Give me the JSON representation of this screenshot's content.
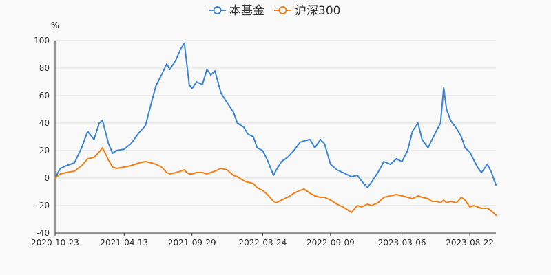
{
  "chart_data": {
    "type": "line",
    "title": "",
    "xlabel": "",
    "ylabel": "%",
    "ylim": [
      -40,
      100
    ],
    "yticks": [
      -40,
      -20,
      0,
      20,
      40,
      60,
      80,
      100
    ],
    "xlim": [
      "2020-10-23",
      "2023-10-26"
    ],
    "xticks": [
      "2020-10-23",
      "2021-04-13",
      "2021-09-29",
      "2022-03-24",
      "2022-09-09",
      "2023-03-06",
      "2023-08-22"
    ],
    "legend": "top-center",
    "series": [
      {
        "name": "本基金",
        "color": "#3a84da",
        "points": [
          [
            "2020-10-23",
            0
          ],
          [
            "2020-11-05",
            7
          ],
          [
            "2020-11-20",
            9
          ],
          [
            "2020-12-10",
            11
          ],
          [
            "2020-12-28",
            22
          ],
          [
            "2021-01-12",
            34
          ],
          [
            "2021-01-28",
            28
          ],
          [
            "2021-02-10",
            40
          ],
          [
            "2021-02-18",
            42
          ],
          [
            "2021-03-05",
            25
          ],
          [
            "2021-03-15",
            18
          ],
          [
            "2021-03-25",
            20
          ],
          [
            "2021-04-13",
            21
          ],
          [
            "2021-04-30",
            25
          ],
          [
            "2021-05-20",
            33
          ],
          [
            "2021-06-05",
            38
          ],
          [
            "2021-06-20",
            55
          ],
          [
            "2021-07-01",
            67
          ],
          [
            "2021-07-15",
            75
          ],
          [
            "2021-07-28",
            83
          ],
          [
            "2021-08-05",
            79
          ],
          [
            "2021-08-20",
            86
          ],
          [
            "2021-09-01",
            94
          ],
          [
            "2021-09-10",
            98
          ],
          [
            "2021-09-16",
            83
          ],
          [
            "2021-09-22",
            68
          ],
          [
            "2021-09-29",
            65
          ],
          [
            "2021-10-10",
            70
          ],
          [
            "2021-10-25",
            68
          ],
          [
            "2021-11-05",
            79
          ],
          [
            "2021-11-15",
            75
          ],
          [
            "2021-11-25",
            78
          ],
          [
            "2021-12-10",
            62
          ],
          [
            "2021-12-25",
            55
          ],
          [
            "2022-01-10",
            48
          ],
          [
            "2022-01-20",
            40
          ],
          [
            "2022-02-05",
            37
          ],
          [
            "2022-02-15",
            32
          ],
          [
            "2022-03-01",
            30
          ],
          [
            "2022-03-10",
            22
          ],
          [
            "2022-03-24",
            20
          ],
          [
            "2022-04-05",
            13
          ],
          [
            "2022-04-20",
            2
          ],
          [
            "2022-04-27",
            6
          ],
          [
            "2022-05-10",
            12
          ],
          [
            "2022-05-25",
            15
          ],
          [
            "2022-06-10",
            20
          ],
          [
            "2022-06-25",
            26
          ],
          [
            "2022-07-05",
            27
          ],
          [
            "2022-07-20",
            28
          ],
          [
            "2022-08-01",
            22
          ],
          [
            "2022-08-15",
            28
          ],
          [
            "2022-08-25",
            25
          ],
          [
            "2022-09-09",
            10
          ],
          [
            "2022-09-25",
            6
          ],
          [
            "2022-10-10",
            4
          ],
          [
            "2022-10-31",
            1
          ],
          [
            "2022-11-15",
            2
          ],
          [
            "2022-11-25",
            -2
          ],
          [
            "2022-12-10",
            -7
          ],
          [
            "2022-12-20",
            -3
          ],
          [
            "2023-01-05",
            4
          ],
          [
            "2023-01-20",
            12
          ],
          [
            "2023-02-05",
            10
          ],
          [
            "2023-02-20",
            14
          ],
          [
            "2023-03-06",
            12
          ],
          [
            "2023-03-20",
            20
          ],
          [
            "2023-04-01",
            34
          ],
          [
            "2023-04-15",
            40
          ],
          [
            "2023-04-25",
            28
          ],
          [
            "2023-05-10",
            22
          ],
          [
            "2023-05-20",
            28
          ],
          [
            "2023-06-01",
            35
          ],
          [
            "2023-06-10",
            40
          ],
          [
            "2023-06-18",
            66
          ],
          [
            "2023-06-25",
            50
          ],
          [
            "2023-07-05",
            42
          ],
          [
            "2023-07-20",
            36
          ],
          [
            "2023-08-01",
            30
          ],
          [
            "2023-08-10",
            22
          ],
          [
            "2023-08-22",
            19
          ],
          [
            "2023-09-01",
            13
          ],
          [
            "2023-09-10",
            8
          ],
          [
            "2023-09-20",
            4
          ],
          [
            "2023-10-05",
            10
          ],
          [
            "2023-10-15",
            4
          ],
          [
            "2023-10-26",
            -5
          ]
        ]
      },
      {
        "name": "沪深300",
        "color": "#f57f17",
        "points": [
          [
            "2020-10-23",
            0
          ],
          [
            "2020-11-05",
            3
          ],
          [
            "2020-11-20",
            4
          ],
          [
            "2020-12-10",
            5
          ],
          [
            "2020-12-28",
            9
          ],
          [
            "2021-01-12",
            14
          ],
          [
            "2021-01-28",
            15
          ],
          [
            "2021-02-10",
            19
          ],
          [
            "2021-02-18",
            22
          ],
          [
            "2021-03-05",
            13
          ],
          [
            "2021-03-15",
            8
          ],
          [
            "2021-03-25",
            7
          ],
          [
            "2021-04-13",
            8
          ],
          [
            "2021-04-30",
            9
          ],
          [
            "2021-05-20",
            11
          ],
          [
            "2021-06-05",
            12
          ],
          [
            "2021-06-20",
            11
          ],
          [
            "2021-07-01",
            10
          ],
          [
            "2021-07-15",
            8
          ],
          [
            "2021-07-28",
            4
          ],
          [
            "2021-08-05",
            3
          ],
          [
            "2021-08-20",
            4
          ],
          [
            "2021-09-01",
            5
          ],
          [
            "2021-09-10",
            6
          ],
          [
            "2021-09-16",
            4
          ],
          [
            "2021-09-22",
            3
          ],
          [
            "2021-09-29",
            3
          ],
          [
            "2021-10-10",
            4
          ],
          [
            "2021-10-25",
            4
          ],
          [
            "2021-11-05",
            3
          ],
          [
            "2021-11-15",
            4
          ],
          [
            "2021-11-25",
            5
          ],
          [
            "2021-12-10",
            7
          ],
          [
            "2021-12-25",
            6
          ],
          [
            "2022-01-10",
            2
          ],
          [
            "2022-01-20",
            1
          ],
          [
            "2022-02-05",
            -2
          ],
          [
            "2022-02-15",
            -3
          ],
          [
            "2022-03-01",
            -4
          ],
          [
            "2022-03-10",
            -7
          ],
          [
            "2022-03-24",
            -9
          ],
          [
            "2022-04-05",
            -12
          ],
          [
            "2022-04-20",
            -17
          ],
          [
            "2022-04-27",
            -18
          ],
          [
            "2022-05-10",
            -16
          ],
          [
            "2022-05-25",
            -14
          ],
          [
            "2022-06-10",
            -11
          ],
          [
            "2022-06-25",
            -9
          ],
          [
            "2022-07-05",
            -8
          ],
          [
            "2022-07-20",
            -11
          ],
          [
            "2022-08-01",
            -13
          ],
          [
            "2022-08-15",
            -14
          ],
          [
            "2022-08-25",
            -14
          ],
          [
            "2022-09-09",
            -16
          ],
          [
            "2022-09-25",
            -19
          ],
          [
            "2022-10-10",
            -21
          ],
          [
            "2022-10-31",
            -25
          ],
          [
            "2022-11-15",
            -20
          ],
          [
            "2022-11-25",
            -21
          ],
          [
            "2022-12-10",
            -19
          ],
          [
            "2022-12-20",
            -20
          ],
          [
            "2023-01-05",
            -18
          ],
          [
            "2023-01-20",
            -14
          ],
          [
            "2023-02-05",
            -13
          ],
          [
            "2023-02-20",
            -12
          ],
          [
            "2023-03-06",
            -13
          ],
          [
            "2023-03-20",
            -14
          ],
          [
            "2023-04-01",
            -15
          ],
          [
            "2023-04-15",
            -13
          ],
          [
            "2023-04-25",
            -14
          ],
          [
            "2023-05-10",
            -15
          ],
          [
            "2023-05-20",
            -17
          ],
          [
            "2023-06-01",
            -17
          ],
          [
            "2023-06-10",
            -18
          ],
          [
            "2023-06-18",
            -16
          ],
          [
            "2023-06-25",
            -18
          ],
          [
            "2023-07-05",
            -17
          ],
          [
            "2023-07-20",
            -18
          ],
          [
            "2023-08-01",
            -14
          ],
          [
            "2023-08-10",
            -16
          ],
          [
            "2023-08-22",
            -21
          ],
          [
            "2023-09-01",
            -20
          ],
          [
            "2023-09-10",
            -21
          ],
          [
            "2023-09-20",
            -22
          ],
          [
            "2023-10-05",
            -22
          ],
          [
            "2023-10-15",
            -24
          ],
          [
            "2023-10-26",
            -27
          ]
        ]
      }
    ]
  }
}
